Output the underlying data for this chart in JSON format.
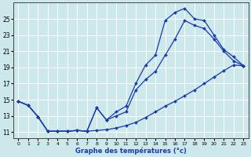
{
  "title": "Graphe des températures (°c)",
  "background_color": "#cde8ea",
  "grid_color": "#ffffff",
  "line_color": "#1a3aab",
  "x_ticks": [
    0,
    1,
    2,
    3,
    4,
    5,
    6,
    7,
    8,
    9,
    10,
    11,
    12,
    13,
    14,
    15,
    16,
    17,
    18,
    19,
    20,
    21,
    22,
    23
  ],
  "y_ticks": [
    11,
    13,
    15,
    17,
    19,
    21,
    23,
    25
  ],
  "xlim": [
    -0.5,
    23.5
  ],
  "ylim": [
    10.2,
    27.0
  ],
  "line1_x": [
    0,
    1,
    2,
    3,
    4,
    5,
    6,
    7,
    8,
    9,
    10,
    11,
    12,
    13,
    14,
    15,
    16,
    17,
    18,
    19,
    20,
    21,
    22,
    23
  ],
  "line1_y": [
    14.8,
    14.3,
    12.9,
    11.1,
    11.1,
    11.1,
    11.2,
    11.1,
    11.2,
    11.3,
    11.5,
    11.8,
    12.2,
    12.8,
    13.5,
    14.2,
    14.8,
    15.5,
    16.2,
    17.0,
    17.8,
    18.6,
    19.3,
    19.2
  ],
  "line2_x": [
    0,
    1,
    2,
    3,
    4,
    5,
    6,
    7,
    8,
    9,
    10,
    11,
    12,
    13,
    14,
    15,
    16,
    17,
    18,
    19,
    20,
    21,
    22,
    23
  ],
  "line2_y": [
    14.8,
    14.3,
    12.9,
    11.1,
    11.1,
    11.1,
    11.2,
    11.1,
    14.0,
    12.5,
    13.5,
    14.2,
    17.0,
    19.3,
    20.5,
    24.8,
    25.8,
    26.3,
    25.0,
    24.8,
    23.0,
    21.2,
    20.3,
    19.2
  ],
  "line3_x": [
    0,
    1,
    2,
    3,
    4,
    5,
    6,
    7,
    8,
    9,
    10,
    11,
    12,
    13,
    14,
    15,
    16,
    17,
    18,
    19,
    20,
    21,
    22,
    23
  ],
  "line3_y": [
    14.8,
    14.3,
    12.9,
    11.1,
    11.1,
    11.1,
    11.2,
    11.1,
    14.0,
    12.5,
    13.0,
    13.5,
    16.2,
    17.5,
    18.5,
    20.5,
    22.5,
    24.8,
    24.2,
    23.8,
    22.5,
    21.0,
    19.8,
    19.2
  ]
}
